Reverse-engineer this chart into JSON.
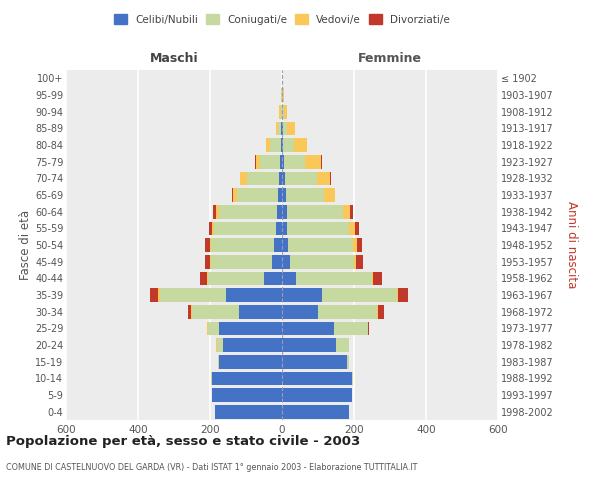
{
  "age_groups": [
    "0-4",
    "5-9",
    "10-14",
    "15-19",
    "20-24",
    "25-29",
    "30-34",
    "35-39",
    "40-44",
    "45-49",
    "50-54",
    "55-59",
    "60-64",
    "65-69",
    "70-74",
    "75-79",
    "80-84",
    "85-89",
    "90-94",
    "95-99",
    "100+"
  ],
  "birth_years": [
    "1998-2002",
    "1993-1997",
    "1988-1992",
    "1983-1987",
    "1978-1982",
    "1973-1977",
    "1968-1972",
    "1963-1967",
    "1958-1962",
    "1953-1957",
    "1948-1952",
    "1943-1947",
    "1938-1942",
    "1933-1937",
    "1928-1932",
    "1923-1927",
    "1918-1922",
    "1913-1917",
    "1908-1912",
    "1903-1907",
    "≤ 1902"
  ],
  "male": {
    "celibi": [
      185,
      195,
      195,
      175,
      165,
      175,
      120,
      155,
      50,
      28,
      22,
      18,
      15,
      10,
      8,
      5,
      4,
      2,
      1,
      1,
      1
    ],
    "coniugati": [
      0,
      0,
      2,
      4,
      15,
      30,
      130,
      185,
      155,
      168,
      175,
      170,
      160,
      115,
      90,
      55,
      30,
      8,
      3,
      1,
      0
    ],
    "vedovi": [
      0,
      0,
      0,
      0,
      2,
      2,
      2,
      4,
      4,
      4,
      4,
      6,
      8,
      12,
      18,
      12,
      10,
      8,
      3,
      1,
      0
    ],
    "divorziati": [
      0,
      0,
      0,
      0,
      0,
      0,
      10,
      22,
      20,
      14,
      12,
      10,
      8,
      2,
      2,
      2,
      0,
      0,
      0,
      0,
      0
    ]
  },
  "female": {
    "nubili": [
      185,
      195,
      195,
      180,
      150,
      145,
      100,
      110,
      40,
      22,
      18,
      15,
      14,
      10,
      8,
      5,
      4,
      2,
      1,
      0,
      0
    ],
    "coniugate": [
      0,
      0,
      2,
      5,
      35,
      95,
      165,
      210,
      210,
      178,
      178,
      170,
      155,
      108,
      88,
      58,
      28,
      12,
      4,
      2,
      0
    ],
    "vedove": [
      0,
      0,
      0,
      0,
      0,
      0,
      2,
      2,
      4,
      6,
      12,
      18,
      20,
      28,
      38,
      45,
      38,
      22,
      8,
      3,
      1
    ],
    "divorziate": [
      0,
      0,
      0,
      0,
      0,
      2,
      15,
      28,
      25,
      18,
      15,
      12,
      8,
      2,
      2,
      2,
      0,
      0,
      0,
      0,
      0
    ]
  },
  "colors": {
    "celibi": "#4472C4",
    "coniugati": "#C5D9A0",
    "vedovi": "#FAC858",
    "divorziati": "#C0392B"
  },
  "xlim": 600,
  "title": "Popolazione per età, sesso e stato civile - 2003",
  "subtitle": "COMUNE DI CASTELNUOVO DEL GARDA (VR) - Dati ISTAT 1° gennaio 2003 - Elaborazione TUTTITALIA.IT",
  "ylabel_left": "Fasce di età",
  "ylabel_right": "Anni di nascita",
  "xlabel_left": "Maschi",
  "xlabel_right": "Femmine",
  "legend_labels": [
    "Celibi/Nubili",
    "Coniugati/e",
    "Vedovi/e",
    "Divorziati/e"
  ],
  "background_color": "#ececec"
}
